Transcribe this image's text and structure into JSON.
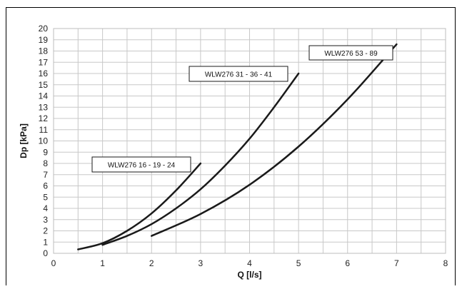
{
  "chart_data": {
    "type": "line",
    "xlabel": "Q [l/s]",
    "ylabel": "Dp [kPa]",
    "xlim": [
      0,
      8
    ],
    "ylim": [
      0,
      20
    ],
    "x_ticks": [
      "0",
      "1",
      "2",
      "3",
      "4",
      "5",
      "6",
      "7",
      "8"
    ],
    "y_ticks": [
      "0",
      "1",
      "2",
      "3",
      "4",
      "5",
      "6",
      "7",
      "8",
      "9",
      "10",
      "11",
      "12",
      "13",
      "14",
      "15",
      "16",
      "17",
      "18",
      "19",
      "20"
    ],
    "grid": true,
    "series": [
      {
        "name": "WLW276 16 - 19 - 24",
        "x": [
          0.5,
          1.0,
          1.5,
          2.0,
          2.5,
          3.0
        ],
        "y": [
          0.35,
          0.9,
          2.0,
          3.55,
          5.6,
          8.0
        ]
      },
      {
        "name": "WLW276 31 - 36 - 41",
        "x": [
          1.0,
          1.5,
          2.0,
          2.5,
          3.0,
          3.5,
          4.0,
          4.5,
          5.0
        ],
        "y": [
          0.75,
          1.55,
          2.6,
          4.0,
          5.7,
          7.8,
          10.2,
          13.0,
          16.0
        ]
      },
      {
        "name": "WLW276 53 - 89",
        "x": [
          2.0,
          3.0,
          4.0,
          5.0,
          6.0,
          7.0
        ],
        "y": [
          1.55,
          3.5,
          6.1,
          9.5,
          13.7,
          18.6
        ]
      }
    ],
    "colors": {
      "line": "#1a1a1a",
      "grid": "#c8c8c8"
    }
  }
}
